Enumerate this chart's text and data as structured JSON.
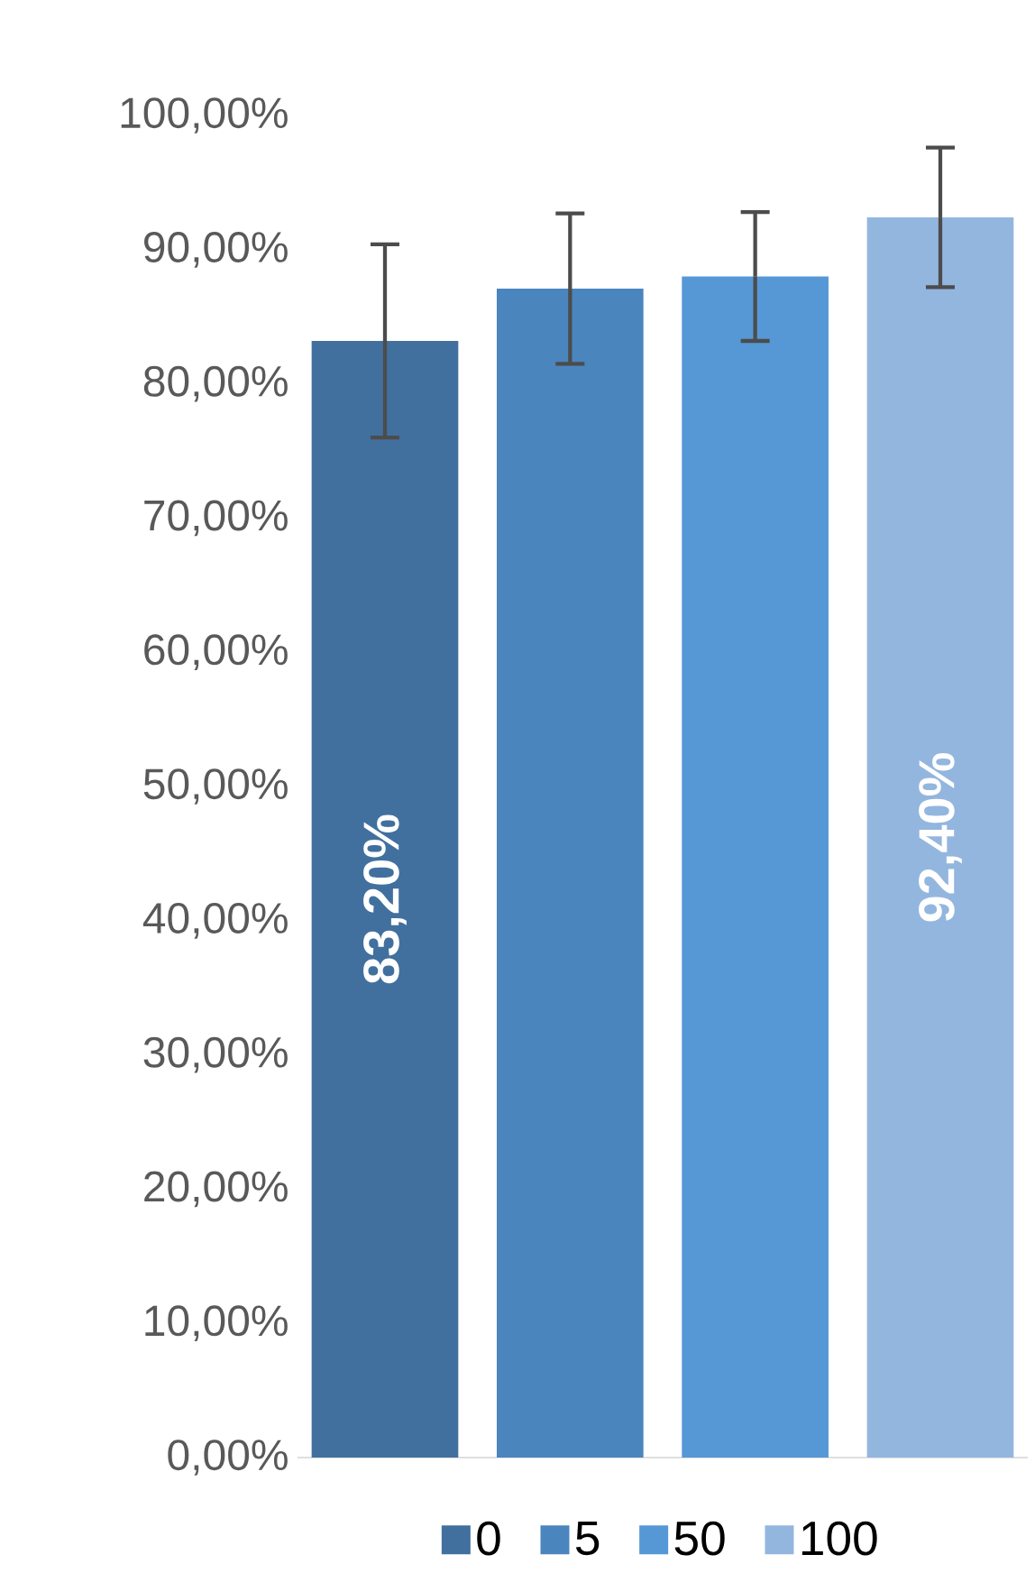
{
  "chart_data": {
    "type": "bar",
    "categories": [
      null
    ],
    "series": [
      {
        "name": "0",
        "color": "#41709f",
        "values": [
          83.2
        ],
        "errors": [
          7.2
        ],
        "value_labels": [
          "83,20%"
        ]
      },
      {
        "name": "5",
        "color": "#4a85be",
        "values": [
          87.1
        ],
        "errors": [
          5.6
        ]
      },
      {
        "name": "50",
        "color": "#5698d6",
        "values": [
          88.0
        ],
        "errors": [
          4.8
        ]
      },
      {
        "name": "100",
        "color": "#93b6df",
        "values": [
          92.4
        ],
        "errors": [
          5.2
        ],
        "value_labels": [
          "92,40%"
        ]
      }
    ],
    "ylim": [
      0,
      100
    ],
    "yticks": [
      {
        "value": 0,
        "label": "0,00%"
      },
      {
        "value": 10,
        "label": "10,00%"
      },
      {
        "value": 20,
        "label": "20,00%"
      },
      {
        "value": 30,
        "label": "30,00%"
      },
      {
        "value": 40,
        "label": "40,00%"
      },
      {
        "value": 50,
        "label": "50,00%"
      },
      {
        "value": 60,
        "label": "60,00%"
      },
      {
        "value": 70,
        "label": "70,00%"
      },
      {
        "value": 80,
        "label": "80,00%"
      },
      {
        "value": 90,
        "label": "90,00%"
      },
      {
        "value": 100,
        "label": "100,00%"
      }
    ],
    "grid": false,
    "legend": "bottom"
  }
}
